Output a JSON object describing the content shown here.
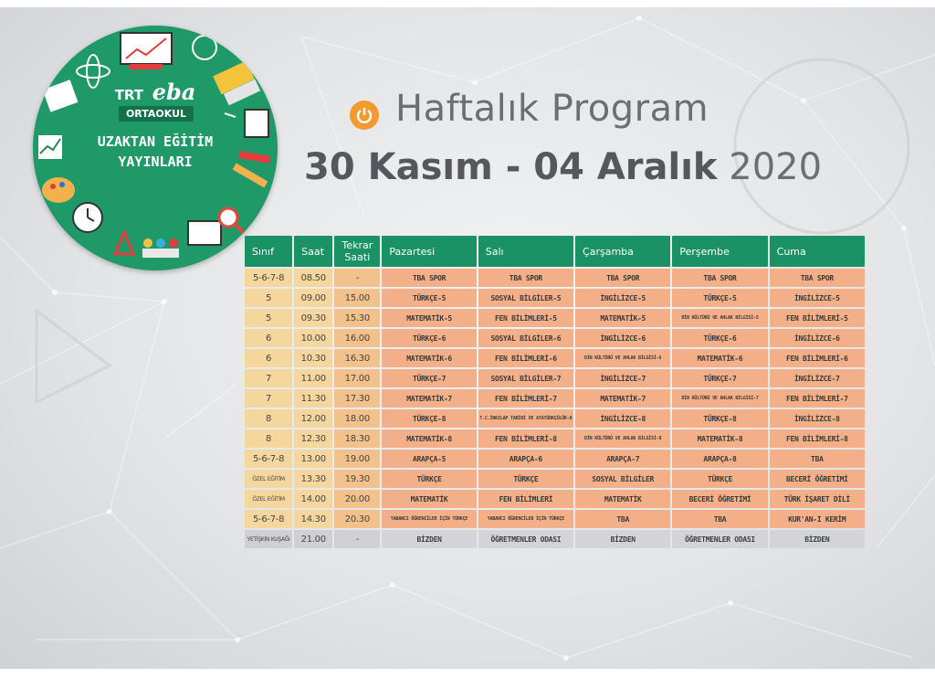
{
  "logo": {
    "brand_trt": "TRT",
    "brand_eba": "eba",
    "level": "ORTAOKUL",
    "tagline_line1": "UZAKTAN EĞİTİM",
    "tagline_line2": "YAYINLARI",
    "accent_color": "#1f9968"
  },
  "header": {
    "title": "Haftalık Program",
    "date_range_bold": "30 Kasım - 04 Aralık",
    "year": "2020",
    "icon": "power-icon",
    "icon_color": "#f29a2e"
  },
  "table": {
    "header_color": "#1a9266",
    "columns": [
      "Sınıf",
      "Saat",
      "Tekrar Saati",
      "Pazartesi",
      "Salı",
      "Çarşamba",
      "Perşembe",
      "Cuma"
    ],
    "rows": [
      {
        "sinif": "5-6-7-8",
        "saat": "08.50",
        "tekrar": "-",
        "pzt": "TBA SPOR",
        "sal": "TBA SPOR",
        "car": "TBA SPOR",
        "per": "TBA SPOR",
        "cum": "TBA SPOR"
      },
      {
        "sinif": "5",
        "saat": "09.00",
        "tekrar": "15.00",
        "pzt": "TÜRKÇE-5",
        "sal": "SOSYAL BİLGİLER-5",
        "car": "İNGİLİZCE-5",
        "per": "TÜRKÇE-5",
        "cum": "İNGİLİZCE-5"
      },
      {
        "sinif": "5",
        "saat": "09.30",
        "tekrar": "15.30",
        "pzt": "MATEMATİK-5",
        "sal": "FEN BİLİMLERİ-5",
        "car": "MATEMATİK-5",
        "per": "DİN KÜLTÜRÜ VE AHLAK BİLGİSİ-5",
        "cum": "FEN BİLİMLERİ-5"
      },
      {
        "sinif": "6",
        "saat": "10.00",
        "tekrar": "16.00",
        "pzt": "TÜRKÇE-6",
        "sal": "SOSYAL BİLGİLER-6",
        "car": "İNGİLİZCE-6",
        "per": "TÜRKÇE-6",
        "cum": "İNGİLİZCE-6"
      },
      {
        "sinif": "6",
        "saat": "10.30",
        "tekrar": "16.30",
        "pzt": "MATEMATİK-6",
        "sal": "FEN BİLİMLERİ-6",
        "car": "DİN KÜLTÜRÜ VE AHLAK BİLGİSİ-6",
        "per": "MATEMATİK-6",
        "cum": "FEN BİLİMLERİ-6"
      },
      {
        "sinif": "7",
        "saat": "11.00",
        "tekrar": "17.00",
        "pzt": "TÜRKÇE-7",
        "sal": "SOSYAL BİLGİLER-7",
        "car": "İNGİLİZCE-7",
        "per": "TÜRKÇE-7",
        "cum": "İNGİLİZCE-7"
      },
      {
        "sinif": "7",
        "saat": "11.30",
        "tekrar": "17.30",
        "pzt": "MATEMATİK-7",
        "sal": "FEN BİLİMLERİ-7",
        "car": "MATEMATİK-7",
        "per": "DİN KÜLTÜRÜ VE AHLAK BİLGİSİ-7",
        "cum": "FEN BİLİMLERİ-7"
      },
      {
        "sinif": "8",
        "saat": "12.00",
        "tekrar": "18.00",
        "pzt": "TÜRKÇE-8",
        "sal": "T.C.İNKILAP TARİHİ VE ATATÜRKÇÜLÜK-8",
        "car": "İNGİLİZCE-8",
        "per": "TÜRKÇE-8",
        "cum": "İNGİLİZCE-8"
      },
      {
        "sinif": "8",
        "saat": "12.30",
        "tekrar": "18.30",
        "pzt": "MATEMATİK-8",
        "sal": "FEN BİLİMLERİ-8",
        "car": "DİN KÜLTÜRÜ VE AHLAK BİLGİSİ-8",
        "per": "MATEMATİK-8",
        "cum": "FEN BİLİMLERİ-8"
      },
      {
        "sinif": "5-6-7-8",
        "saat": "13.00",
        "tekrar": "19.00",
        "pzt": "ARAPÇA-5",
        "sal": "ARAPÇA-6",
        "car": "ARAPÇA-7",
        "per": "ARAPÇA-8",
        "cum": "TBA"
      },
      {
        "sinif": "ÖZEL EĞİTİM",
        "saat": "13.30",
        "tekrar": "19.30",
        "pzt": "TÜRKÇE",
        "sal": "TÜRKÇE",
        "car": "SOSYAL BİLGİLER",
        "per": "TÜRKÇE",
        "cum": "BECERİ ÖĞRETİMİ"
      },
      {
        "sinif": "ÖZEL EĞİTİM",
        "saat": "14.00",
        "tekrar": "20.00",
        "pzt": "MATEMATİK",
        "sal": "FEN BİLİMLERİ",
        "car": "MATEMATİK",
        "per": "BECERİ ÖĞRETİMİ",
        "cum": "TÜRK İŞARET DİLİ"
      },
      {
        "sinif": "5-6-7-8",
        "saat": "14.30",
        "tekrar": "20.30",
        "pzt": "YABANCI ÖĞRENCİLER İÇİN TÜRKÇE",
        "sal": "YABANCI ÖĞRENCİLER İÇİN TÜRKÇE",
        "car": "TBA",
        "per": "TBA",
        "cum": "KUR'AN-I KERİM"
      },
      {
        "sinif": "YETİŞKİN KUŞAĞI",
        "saat": "21.00",
        "tekrar": "-",
        "pzt": "BİZDEN",
        "sal": "ÖĞRETMENLER ODASI",
        "car": "BİZDEN",
        "per": "ÖĞRETMENLER ODASI",
        "cum": "BİZDEN"
      }
    ]
  }
}
